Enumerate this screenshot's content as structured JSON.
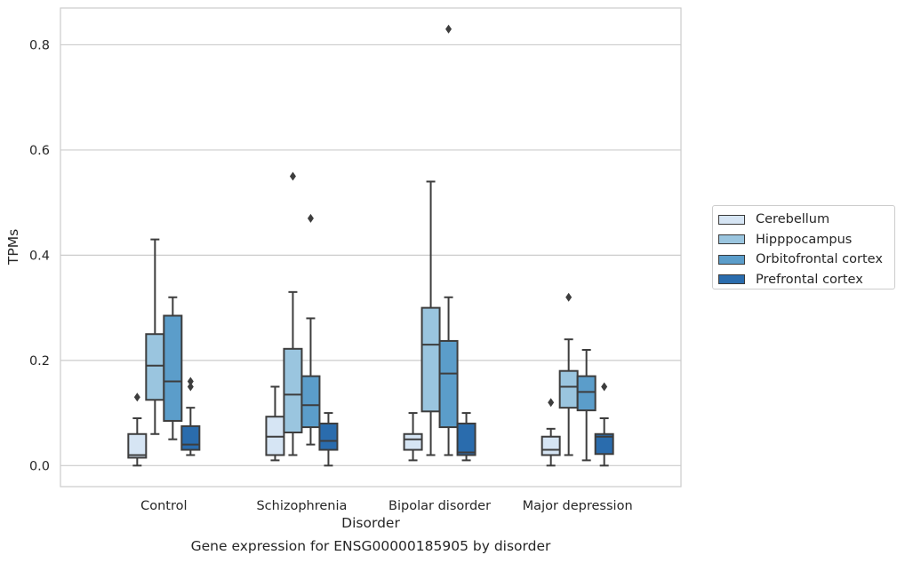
{
  "chart_data": {
    "type": "box",
    "xlabel": "Disorder",
    "ylabel": "TPMs",
    "ylim": [
      -0.04,
      0.87
    ],
    "yticks": [
      0.0,
      0.2,
      0.4,
      0.6,
      0.8
    ],
    "ytick_labels": [
      "0.0",
      "0.2",
      "0.4",
      "0.6",
      "0.8"
    ],
    "grid": "horizontal",
    "legend_placement": "right, outside",
    "caption": "Gene expression for ENSG00000185905 by disorder",
    "categories": [
      "Control",
      "Schizophrenia",
      "Bipolar disorder",
      "Major depression"
    ],
    "series": [
      {
        "name": "Cerebellum",
        "color": "#d6e5f4",
        "boxes": [
          {
            "whisker_low": 0.0,
            "q1": 0.015,
            "median": 0.02,
            "q3": 0.06,
            "whisker_high": 0.09,
            "outliers": [
              0.13
            ]
          },
          {
            "whisker_low": 0.01,
            "q1": 0.02,
            "median": 0.055,
            "q3": 0.093,
            "whisker_high": 0.15,
            "outliers": []
          },
          {
            "whisker_low": 0.01,
            "q1": 0.03,
            "median": 0.05,
            "q3": 0.06,
            "whisker_high": 0.1,
            "outliers": []
          },
          {
            "whisker_low": 0.0,
            "q1": 0.02,
            "median": 0.03,
            "q3": 0.055,
            "whisker_high": 0.07,
            "outliers": [
              0.12
            ]
          }
        ]
      },
      {
        "name": "Hipppocampus",
        "color": "#9ac5df",
        "boxes": [
          {
            "whisker_low": 0.06,
            "q1": 0.125,
            "median": 0.19,
            "q3": 0.25,
            "whisker_high": 0.43,
            "outliers": []
          },
          {
            "whisker_low": 0.02,
            "q1": 0.063,
            "median": 0.135,
            "q3": 0.222,
            "whisker_high": 0.33,
            "outliers": [
              0.55
            ]
          },
          {
            "whisker_low": 0.02,
            "q1": 0.103,
            "median": 0.23,
            "q3": 0.3,
            "whisker_high": 0.54,
            "outliers": []
          },
          {
            "whisker_low": 0.02,
            "q1": 0.11,
            "median": 0.15,
            "q3": 0.18,
            "whisker_high": 0.24,
            "outliers": [
              0.32
            ]
          }
        ]
      },
      {
        "name": "Orbitofrontal cortex",
        "color": "#5b9dca",
        "boxes": [
          {
            "whisker_low": 0.05,
            "q1": 0.085,
            "median": 0.16,
            "q3": 0.285,
            "whisker_high": 0.32,
            "outliers": []
          },
          {
            "whisker_low": 0.04,
            "q1": 0.073,
            "median": 0.115,
            "q3": 0.17,
            "whisker_high": 0.28,
            "outliers": [
              0.47
            ]
          },
          {
            "whisker_low": 0.02,
            "q1": 0.073,
            "median": 0.175,
            "q3": 0.237,
            "whisker_high": 0.32,
            "outliers": [
              0.83
            ]
          },
          {
            "whisker_low": 0.01,
            "q1": 0.105,
            "median": 0.14,
            "q3": 0.17,
            "whisker_high": 0.22,
            "outliers": []
          }
        ]
      },
      {
        "name": "Prefrontal cortex",
        "color": "#2a6cad",
        "boxes": [
          {
            "whisker_low": 0.02,
            "q1": 0.03,
            "median": 0.04,
            "q3": 0.075,
            "whisker_high": 0.11,
            "outliers": [
              0.15,
              0.16
            ]
          },
          {
            "whisker_low": 0.0,
            "q1": 0.03,
            "median": 0.047,
            "q3": 0.08,
            "whisker_high": 0.1,
            "outliers": []
          },
          {
            "whisker_low": 0.01,
            "q1": 0.02,
            "median": 0.025,
            "q3": 0.08,
            "whisker_high": 0.1,
            "outliers": []
          },
          {
            "whisker_low": 0.0,
            "q1": 0.022,
            "median": 0.055,
            "q3": 0.06,
            "whisker_high": 0.09,
            "outliers": [
              0.15
            ]
          }
        ]
      }
    ]
  }
}
